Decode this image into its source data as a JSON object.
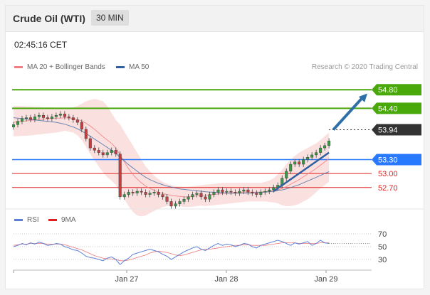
{
  "header": {
    "title": "Crude Oil (WTI)",
    "interval": "30 MIN"
  },
  "timestamp": "02:45:16 CET",
  "legend": {
    "ma20": {
      "label": "MA 20 + Bollinger Bands",
      "color": "#f08080"
    },
    "ma50": {
      "label": "MA 50",
      "color": "#2f5f9e"
    }
  },
  "credit": "Research © 2020 Trading Central",
  "rsi_legend": {
    "rsi": {
      "label": "RSI",
      "color": "#5b7fd6"
    },
    "ma9": {
      "label": "9MA",
      "color": "#e02020"
    }
  },
  "chart_data": [
    {
      "type": "line",
      "name": "price",
      "ylim": [
        52.3,
        55.2
      ],
      "x_ticks": [
        "Jan 27",
        "Jan 28",
        "Jan 29"
      ],
      "close": [
        54.05,
        54.12,
        54.18,
        54.2,
        54.16,
        54.22,
        54.25,
        54.2,
        54.18,
        54.22,
        54.25,
        54.28,
        54.22,
        54.2,
        54.15,
        54.1,
        53.95,
        53.75,
        53.55,
        53.5,
        53.45,
        53.4,
        53.45,
        53.5,
        53.42,
        52.5,
        52.55,
        52.6,
        52.58,
        52.62,
        52.6,
        52.55,
        52.58,
        52.6,
        52.55,
        52.5,
        52.4,
        52.3,
        52.35,
        52.4,
        52.45,
        52.5,
        52.55,
        52.58,
        52.5,
        52.45,
        52.55,
        52.6,
        52.65,
        52.6,
        52.62,
        52.6,
        52.58,
        52.62,
        52.65,
        52.6,
        52.58,
        52.55,
        52.6,
        52.62,
        52.65,
        52.7,
        52.75,
        52.9,
        53.05,
        53.2,
        53.25,
        53.2,
        53.3,
        53.35,
        53.4,
        53.45,
        53.55,
        53.6,
        53.7
      ],
      "ma20": [
        54.1,
        54.11,
        54.12,
        54.13,
        54.14,
        54.15,
        54.16,
        54.17,
        54.18,
        54.18,
        54.19,
        54.19,
        54.2,
        54.19,
        54.18,
        54.16,
        54.13,
        54.08,
        54.02,
        53.95,
        53.87,
        53.79,
        53.72,
        53.65,
        53.55,
        53.4,
        53.25,
        53.1,
        52.98,
        52.88,
        52.8,
        52.73,
        52.68,
        52.64,
        52.6,
        52.57,
        52.55,
        52.53,
        52.52,
        52.51,
        52.5,
        52.5,
        52.51,
        52.52,
        52.53,
        52.53,
        52.54,
        52.55,
        52.56,
        52.57,
        52.58,
        52.58,
        52.59,
        52.59,
        52.6,
        52.6,
        52.6,
        52.6,
        52.6,
        52.61,
        52.62,
        52.63,
        52.65,
        52.68,
        52.72,
        52.77,
        52.82,
        52.87,
        52.93,
        52.99,
        53.05,
        53.11,
        53.18,
        53.25,
        53.32
      ],
      "bb_upper": [
        54.45,
        54.45,
        54.45,
        54.44,
        54.44,
        54.43,
        54.43,
        54.42,
        54.42,
        54.42,
        54.41,
        54.41,
        54.41,
        54.41,
        54.42,
        54.45,
        54.5,
        54.55,
        54.58,
        54.6,
        54.58,
        54.55,
        54.45,
        54.3,
        54.15,
        54.05,
        53.9,
        53.75,
        53.6,
        53.45,
        53.3,
        53.15,
        53.05,
        52.95,
        52.88,
        52.82,
        52.78,
        52.75,
        52.73,
        52.72,
        52.72,
        52.72,
        52.73,
        52.74,
        52.75,
        52.76,
        52.77,
        52.78,
        52.79,
        52.8,
        52.8,
        52.8,
        52.8,
        52.8,
        52.8,
        52.8,
        52.8,
        52.8,
        52.8,
        52.82,
        52.85,
        52.9,
        52.98,
        53.08,
        53.2,
        53.3,
        53.38,
        53.45,
        53.5,
        53.55,
        53.6,
        53.65,
        53.72,
        53.8,
        53.88
      ],
      "bb_lower": [
        53.8,
        53.8,
        53.81,
        53.81,
        53.82,
        53.83,
        53.84,
        53.85,
        53.86,
        53.87,
        53.88,
        53.9,
        53.92,
        53.9,
        53.88,
        53.82,
        53.72,
        53.58,
        53.42,
        53.28,
        53.15,
        53.02,
        52.92,
        52.85,
        52.75,
        52.6,
        52.45,
        52.3,
        52.18,
        52.1,
        52.08,
        52.1,
        52.15,
        52.2,
        52.24,
        52.28,
        52.3,
        52.31,
        52.31,
        52.3,
        52.28,
        52.28,
        52.29,
        52.3,
        52.31,
        52.3,
        52.31,
        52.32,
        52.33,
        52.34,
        52.35,
        52.36,
        52.37,
        52.38,
        52.39,
        52.4,
        52.4,
        52.4,
        52.4,
        52.4,
        52.39,
        52.38,
        52.36,
        52.32,
        52.3,
        52.3,
        52.32,
        52.35,
        52.4,
        52.45,
        52.52,
        52.6,
        52.68,
        52.75,
        52.82
      ],
      "ma50": [
        54.2,
        54.19,
        54.18,
        54.17,
        54.16,
        54.15,
        54.14,
        54.13,
        54.12,
        54.11,
        54.1,
        54.08,
        54.06,
        54.03,
        54.0,
        53.96,
        53.91,
        53.86,
        53.8,
        53.74,
        53.68,
        53.62,
        53.56,
        53.5,
        53.43,
        53.35,
        53.27,
        53.19,
        53.12,
        53.05,
        52.98,
        52.92,
        52.87,
        52.83,
        52.79,
        52.76,
        52.73,
        52.71,
        52.69,
        52.67,
        52.66,
        52.65,
        52.64,
        52.63,
        52.62,
        52.61,
        52.6,
        52.6,
        52.59,
        52.59,
        52.58,
        52.58,
        52.58,
        52.58,
        52.58,
        52.58,
        52.58,
        52.59,
        52.6,
        52.6,
        52.61,
        52.62,
        52.63,
        52.65,
        52.67,
        52.7,
        52.73,
        52.76,
        52.8,
        52.84,
        52.88,
        52.92,
        52.96,
        53.0,
        53.04
      ],
      "levels": [
        {
          "value": 54.8,
          "label": "54.80",
          "color": "#49a80a"
        },
        {
          "value": 54.4,
          "label": "54.40",
          "color": "#49a80a"
        },
        {
          "value": 53.94,
          "label": "53.94",
          "color": "#333333"
        },
        {
          "value": 53.3,
          "label": "53.30",
          "color": "#2979ff"
        },
        {
          "value": 53.0,
          "label": "53.00",
          "color": "#e02020"
        },
        {
          "value": 52.7,
          "label": "52.70",
          "color": "#e02020"
        }
      ],
      "trendline": {
        "from": [
          61,
          52.62
        ],
        "to": [
          74,
          53.45
        ]
      },
      "arrow": {
        "from": [
          75,
          53.94
        ],
        "to": [
          83,
          54.72
        ]
      }
    },
    {
      "type": "line",
      "name": "rsi",
      "ylim": [
        20,
        80
      ],
      "y_ticks": [
        70,
        50,
        30
      ],
      "rsi": [
        50,
        52,
        55,
        53,
        56,
        54,
        57,
        55,
        52,
        53,
        55,
        54,
        50,
        48,
        45,
        44,
        40,
        35,
        33,
        32,
        30,
        28,
        32,
        34,
        30,
        22,
        28,
        32,
        38,
        40,
        42,
        44,
        46,
        44,
        42,
        38,
        35,
        30,
        34,
        38,
        42,
        45,
        48,
        50,
        46,
        44,
        48,
        52,
        55,
        52,
        54,
        53,
        50,
        52,
        55,
        54,
        50,
        48,
        52,
        54,
        56,
        58,
        60,
        58,
        55,
        52,
        56,
        54,
        56,
        58,
        52,
        55,
        60,
        56,
        55
      ],
      "ma9": [
        52,
        53,
        54,
        54,
        55,
        55,
        55,
        55,
        54,
        54,
        54,
        54,
        53,
        51,
        49,
        47,
        45,
        42,
        39,
        36,
        34,
        32,
        31,
        31,
        30,
        28,
        28,
        29,
        31,
        33,
        35,
        37,
        40,
        42,
        43,
        42,
        41,
        39,
        37,
        36,
        37,
        39,
        41,
        43,
        45,
        46,
        46,
        47,
        48,
        49,
        50,
        51,
        52,
        52,
        53,
        53,
        52,
        52,
        52,
        52,
        53,
        54,
        55,
        56,
        56,
        56,
        56,
        55,
        55,
        55,
        55,
        55,
        56,
        56,
        56
      ]
    }
  ]
}
